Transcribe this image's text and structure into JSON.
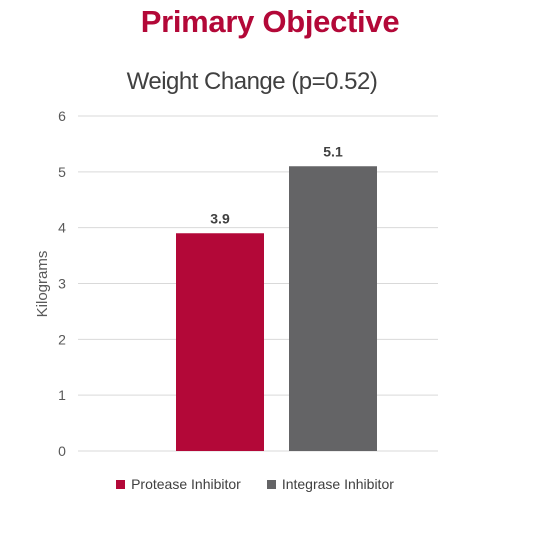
{
  "page_title": "Primary Objective",
  "colors": {
    "accent": "#b30838",
    "title_text": "#404040",
    "tick_text": "#595959",
    "gridline": "#d9d9d9",
    "bar_protease": "#b30838",
    "bar_integrase": "#646466"
  },
  "chart_data": {
    "type": "bar",
    "title": "Weight Change (p=0.52)",
    "ylabel": "Kilograms",
    "xlabel": "",
    "ylim": [
      0,
      6
    ],
    "yticks": [
      "0",
      "1",
      "2",
      "3",
      "4",
      "5",
      "6"
    ],
    "grid": true,
    "legend_position": "bottom",
    "series": [
      {
        "name": "Protease Inhibitor",
        "value": 3.9,
        "label": "3.9",
        "color": "#b30838"
      },
      {
        "name": "Integrase Inhibitor",
        "value": 5.1,
        "label": "5.1",
        "color": "#646466"
      }
    ]
  }
}
